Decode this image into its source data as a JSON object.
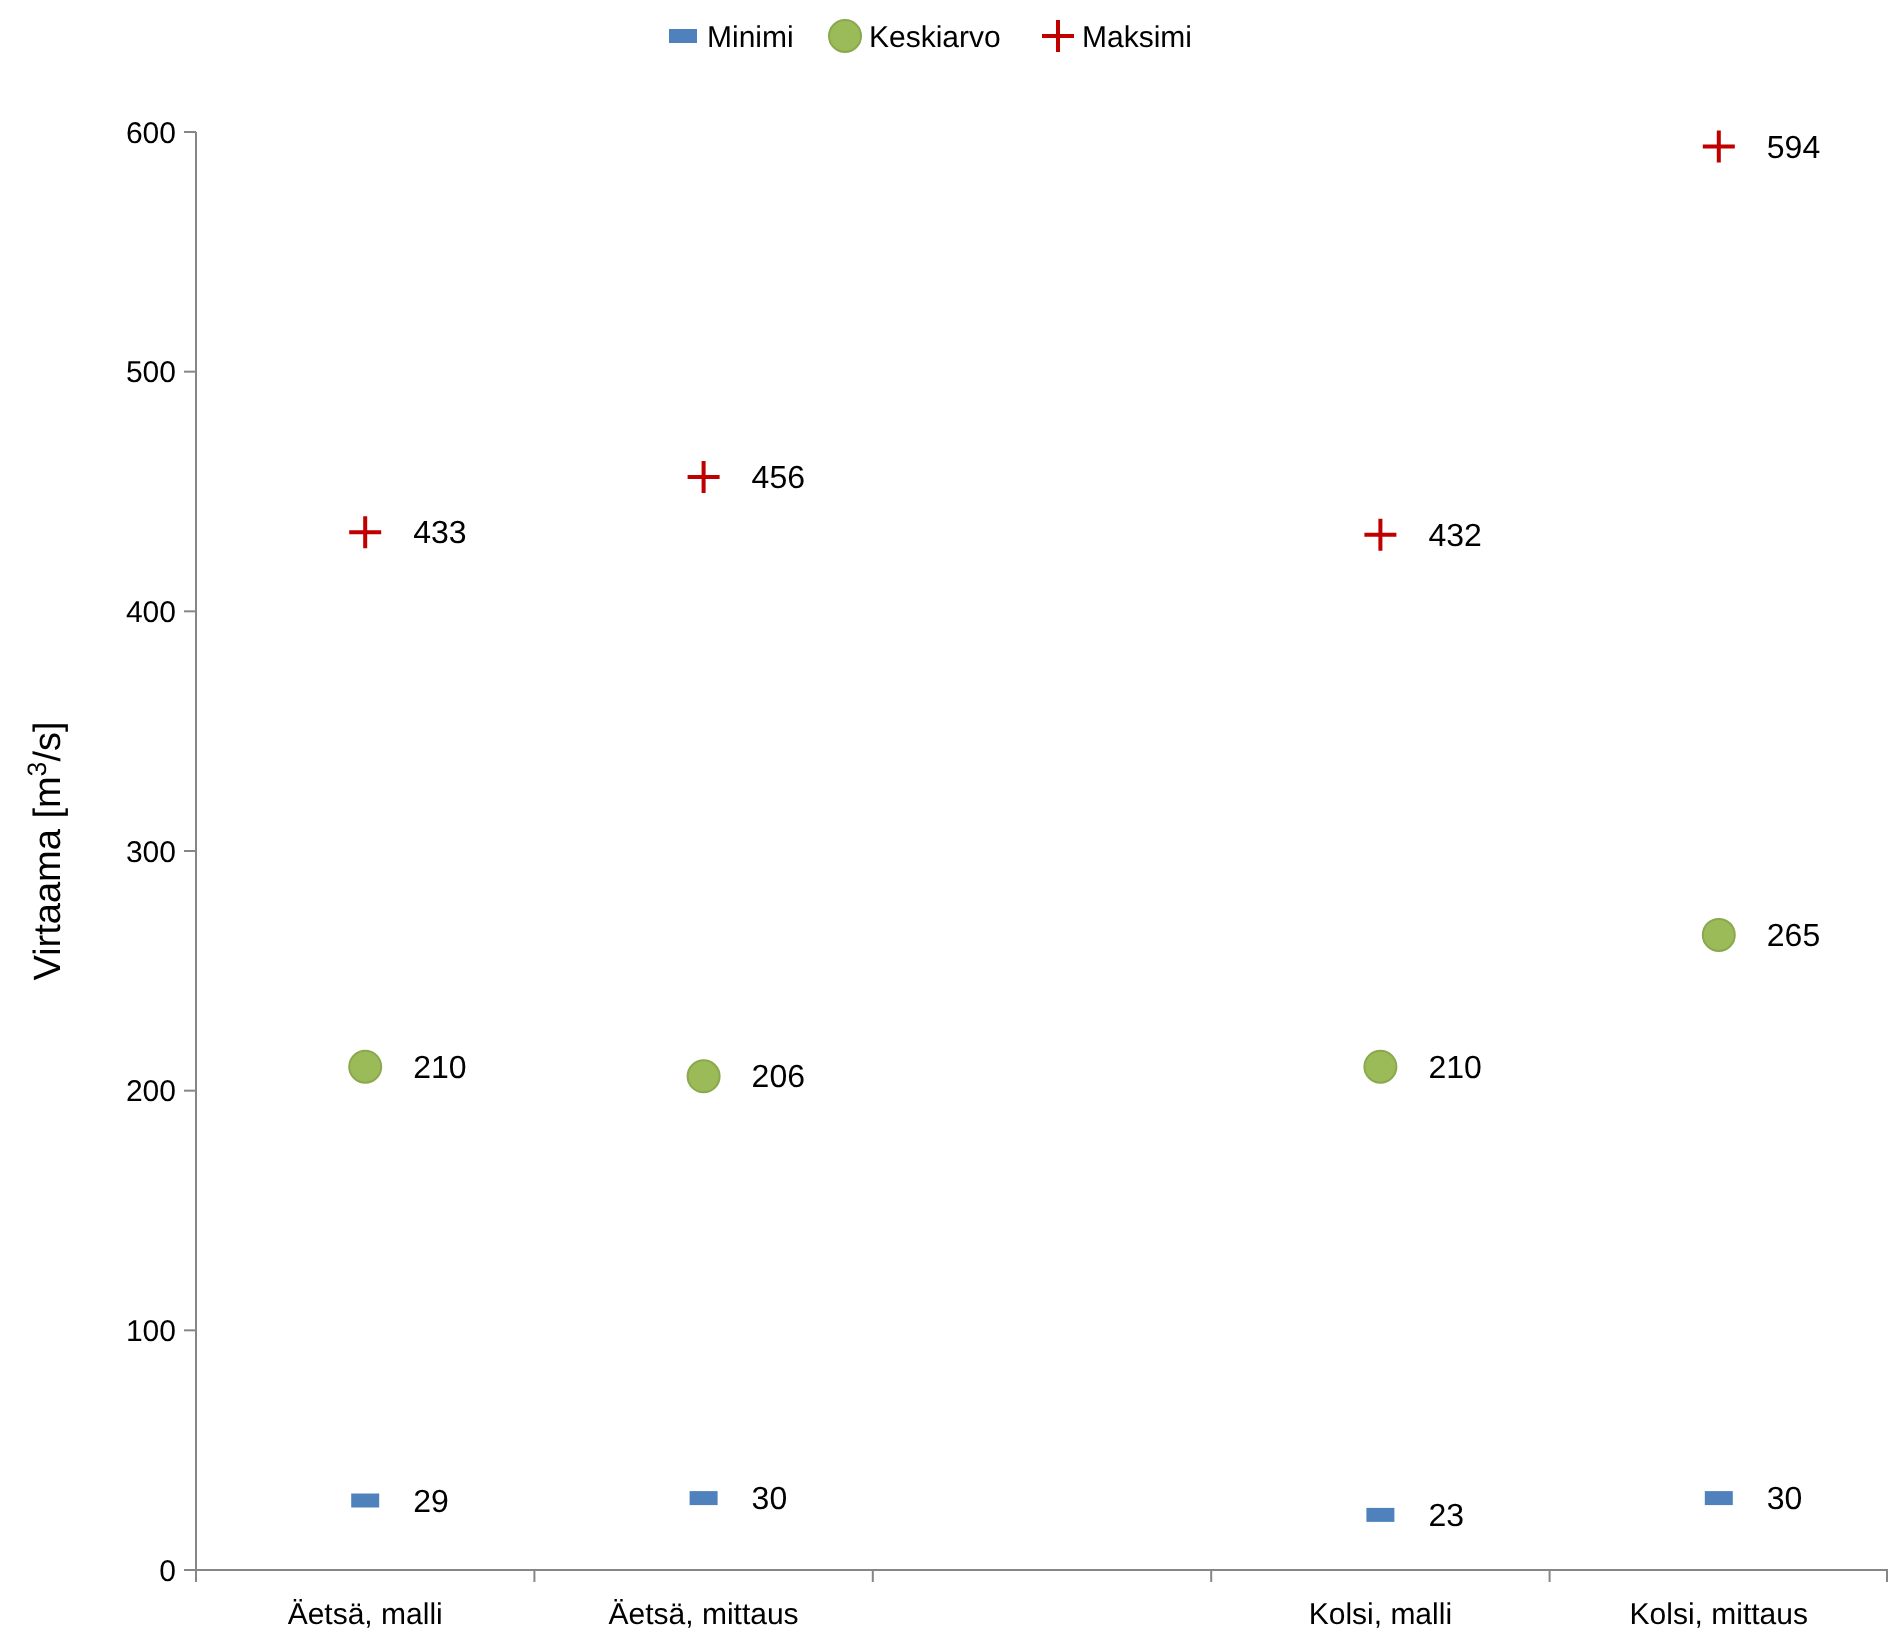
{
  "chart_data": {
    "type": "scatter",
    "ylabel": "Virtaama [m$^{3}$/s]",
    "categories": [
      "Äetsä, malli",
      "Äetsä, mittaus",
      null,
      "Kolsi, malli",
      "Kolsi, mittaus"
    ],
    "series": [
      {
        "name": "Minimi",
        "color": "#4f81bd",
        "marker": "square",
        "values": [
          29,
          30,
          null,
          23,
          30
        ]
      },
      {
        "name": "Keskiarvo",
        "color": "#9bbb59",
        "marker": "circle",
        "values": [
          210,
          206,
          null,
          210,
          265
        ]
      },
      {
        "name": "Maksimi",
        "color": "#c00000",
        "marker": "cross",
        "values": [
          433,
          456,
          null,
          432,
          594
        ]
      }
    ],
    "ylim": [
      0,
      600
    ],
    "yticks": [
      0,
      100,
      200,
      300,
      400,
      500,
      600
    ],
    "data_labels": true,
    "grid": false,
    "legend": "top"
  }
}
